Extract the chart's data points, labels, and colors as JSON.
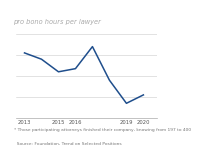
{
  "title": "pro bono hours per lawyer",
  "years": [
    2013,
    2014,
    2015,
    2016,
    2017,
    2018,
    2019,
    2020
  ],
  "values": [
    62,
    56,
    44,
    47,
    68,
    36,
    14,
    22
  ],
  "line_color": "#1f4e8c",
  "fig_bg": "#ffffff",
  "header_bg": "#1a1a1a",
  "plot_bg": "#ffffff",
  "title_text": "pro bono hours per lawyer",
  "title_color": "#aaaaaa",
  "title_fontsize": 4.8,
  "footnote1": "* Those participating attorneys finished their company, knowing from 197 to 400",
  "footnote2": "  Source: Foundation, Trend on Selected Positions",
  "footnote_color": "#777777",
  "footnote_fontsize": 3.2,
  "xtick_labels": [
    "2013",
    "2015",
    "2016",
    "2019",
    "2020"
  ],
  "xtick_positions": [
    2013,
    2015,
    2016,
    2019,
    2020
  ],
  "xtick_fontsize": 3.8,
  "xtick_color": "#555555",
  "ylim": [
    0,
    80
  ],
  "grid_color": "#cccccc",
  "grid_linewidth": 0.4,
  "line_linewidth": 1.1
}
